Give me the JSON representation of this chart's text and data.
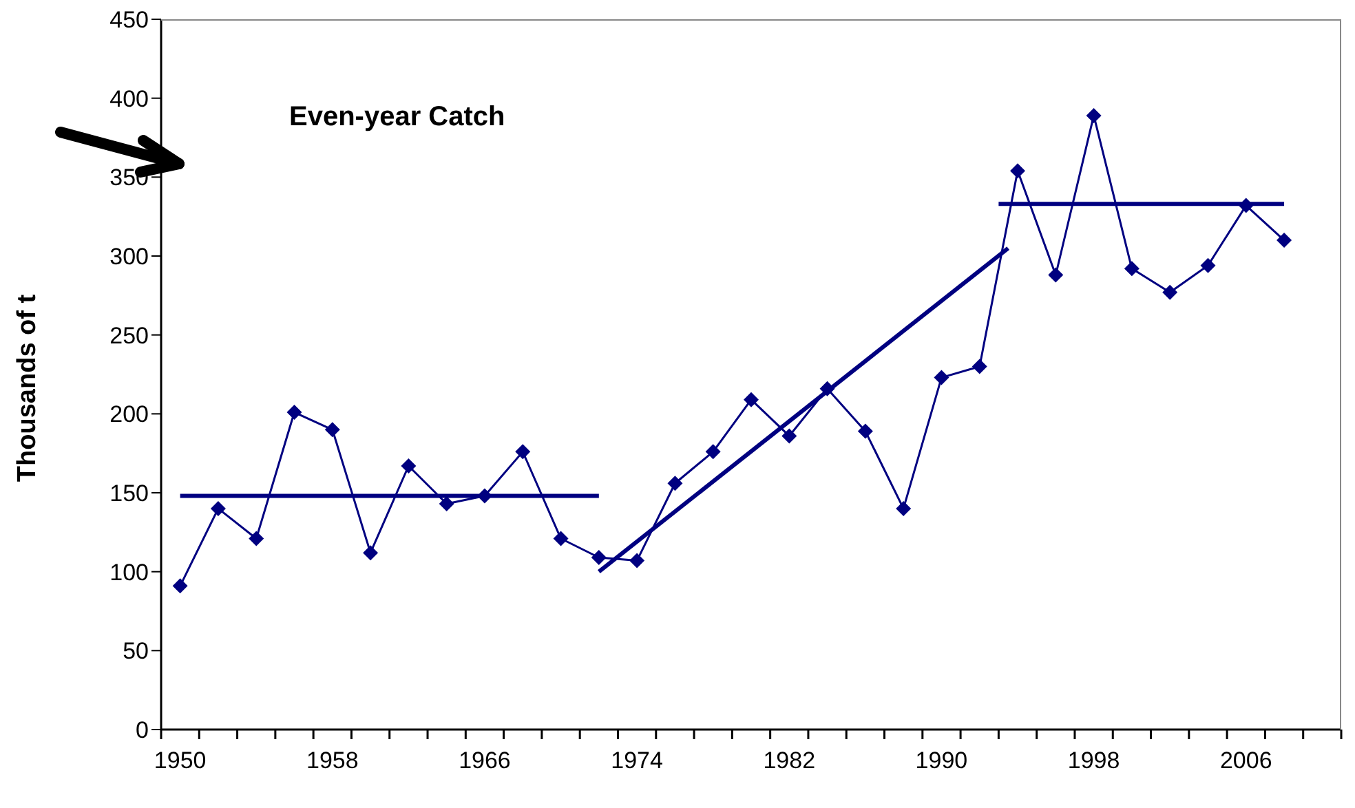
{
  "chart_data": {
    "type": "line",
    "title": "Even-year Catch",
    "ylabel": "Thousands of  t",
    "x": [
      1950,
      1952,
      1954,
      1956,
      1958,
      1960,
      1962,
      1964,
      1966,
      1968,
      1970,
      1972,
      1974,
      1976,
      1978,
      1980,
      1982,
      1984,
      1986,
      1988,
      1990,
      1992,
      1994,
      1996,
      1998,
      2000,
      2002,
      2004,
      2006,
      2008
    ],
    "series": [
      {
        "color": "#000080",
        "values": [
          91,
          140,
          121,
          201,
          190,
          112,
          167,
          143,
          148,
          176,
          121,
          109,
          107,
          156,
          176,
          209,
          186,
          216,
          189,
          140,
          223,
          230,
          354,
          288,
          389,
          292,
          277,
          294,
          332,
          310
        ]
      },
      {
        "type": "line",
        "marker": "none",
        "color": "#000080",
        "x": [
          1950,
          1972
        ],
        "values": [
          148,
          148
        ]
      },
      {
        "type": "line",
        "marker": "none",
        "color": "#000080",
        "x": [
          1972,
          1993.5
        ],
        "values": [
          100,
          305
        ]
      },
      {
        "type": "line",
        "marker": "none",
        "color": "#000080",
        "x": [
          1993,
          2008
        ],
        "values": [
          333,
          333
        ]
      }
    ],
    "xlim": [
      1949,
      2011
    ],
    "xticks": [
      {
        "value": 1949,
        "label": null
      },
      1950,
      {
        "value": 1951,
        "label": null
      },
      {
        "value": 1953,
        "label": null
      },
      {
        "value": 1955,
        "label": null
      },
      {
        "value": 1957,
        "label": null
      },
      1958,
      {
        "value": 1959,
        "label": null
      },
      {
        "value": 1961,
        "label": null
      },
      {
        "value": 1963,
        "label": null
      },
      {
        "value": 1965,
        "label": null
      },
      1966,
      {
        "value": 1967,
        "label": null
      },
      {
        "value": 1969,
        "label": null
      },
      {
        "value": 1971,
        "label": null
      },
      {
        "value": 1973,
        "label": null
      },
      1974,
      {
        "value": 1975,
        "label": null
      },
      {
        "value": 1977,
        "label": null
      },
      {
        "value": 1979,
        "label": null
      },
      {
        "value": 1981,
        "label": null
      },
      1982,
      {
        "value": 1983,
        "label": null
      },
      {
        "value": 1985,
        "label": null
      },
      {
        "value": 1987,
        "label": null
      },
      {
        "value": 1989,
        "label": null
      },
      1990,
      {
        "value": 1991,
        "label": null
      },
      {
        "value": 1993,
        "label": null
      },
      {
        "value": 1995,
        "label": null
      },
      {
        "value": 1997,
        "label": null
      },
      1998,
      {
        "value": 1999,
        "label": null
      },
      {
        "value": 2001,
        "label": null
      },
      {
        "value": 2003,
        "label": null
      },
      {
        "value": 2005,
        "label": null
      },
      2006,
      {
        "value": 2007,
        "label": null
      },
      {
        "value": 2009,
        "label": null
      },
      {
        "value": 2011,
        "label": null
      }
    ],
    "ylim": [
      0,
      450
    ],
    "yticks": [
      0,
      50,
      100,
      150,
      200,
      250,
      300,
      350,
      400,
      450
    ],
    "marker": "diamond",
    "line_style": "solid",
    "grid": false
  }
}
